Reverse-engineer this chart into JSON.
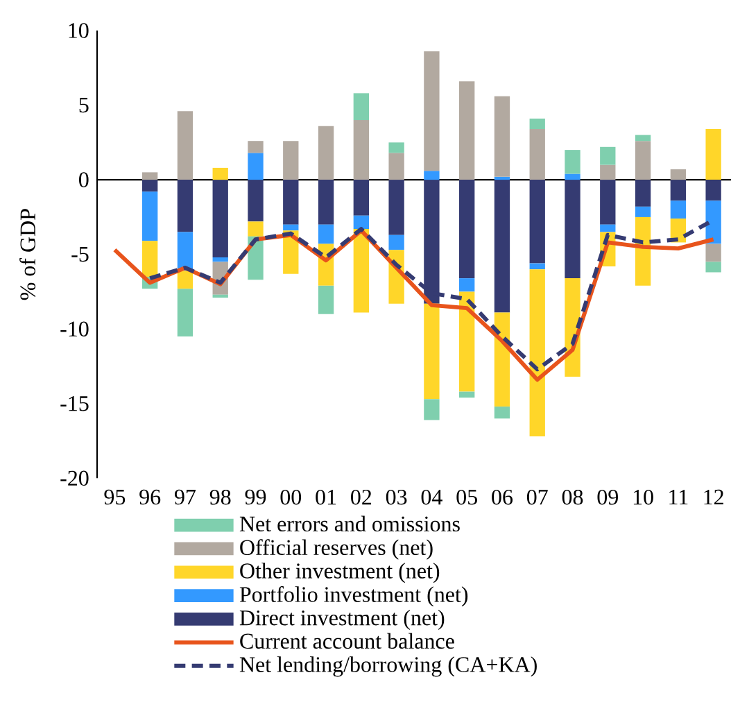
{
  "chart_data": {
    "type": "bar",
    "stacked": true,
    "ylabel": "% of GDP",
    "legend": "bottom",
    "categories": [
      "95",
      "96",
      "97",
      "98",
      "99",
      "00",
      "01",
      "02",
      "03",
      "04",
      "05",
      "06",
      "07",
      "08",
      "09",
      "10",
      "11",
      "12"
    ],
    "ylim": [
      -20,
      10
    ],
    "yticks": [
      -20,
      -15,
      -10,
      -5,
      0,
      5,
      10
    ],
    "series": [
      {
        "name": "Direct investment (net)",
        "color": "#353b72",
        "values": [
          null,
          -0.8,
          -3.5,
          -5.2,
          -2.8,
          -3.0,
          -3.0,
          -2.4,
          -3.7,
          -8.3,
          -6.6,
          -8.9,
          -5.6,
          -6.6,
          -3.0,
          -1.8,
          -1.4,
          -1.4
        ]
      },
      {
        "name": "Portfolio investment (net)",
        "color": "#3399ff",
        "values": [
          null,
          -3.3,
          -2.6,
          -0.3,
          1.8,
          -0.4,
          -1.3,
          -0.9,
          -1.0,
          0.6,
          -0.9,
          0.2,
          -0.4,
          0.4,
          -0.5,
          -0.7,
          -1.2,
          -2.9
        ]
      },
      {
        "name": "Other investment (net)",
        "color": "#ffd629",
        "values": [
          null,
          -2.4,
          -1.2,
          0.8,
          -1.0,
          -2.9,
          -2.8,
          -5.6,
          -3.6,
          -6.4,
          -6.7,
          -6.3,
          -11.2,
          -6.6,
          -2.3,
          -4.6,
          -1.6,
          3.4
        ]
      },
      {
        "name": "Official reserves (net)",
        "color": "#b2a9a0",
        "values": [
          null,
          0.5,
          4.6,
          -2.2,
          0.8,
          2.6,
          3.6,
          4.0,
          1.8,
          8.0,
          6.6,
          5.4,
          3.4,
          null,
          1.0,
          2.6,
          0.7,
          -1.2
        ]
      },
      {
        "name": "Net errors and omissions",
        "color": "#7fcfae",
        "values": [
          null,
          -0.8,
          -3.2,
          -0.2,
          -2.9,
          null,
          -1.9,
          1.8,
          0.7,
          -1.4,
          -0.4,
          -0.8,
          0.7,
          1.6,
          1.2,
          0.4,
          null,
          -0.7
        ]
      },
      {
        "name": "Current account balance",
        "type": "line",
        "line_style": "solid",
        "color": "#e8541c",
        "values": [
          -4.7,
          -6.9,
          -5.9,
          -7.0,
          -4.0,
          -3.7,
          -5.4,
          -3.4,
          -5.9,
          -8.4,
          -8.6,
          -10.8,
          -13.4,
          -11.4,
          -4.2,
          -4.5,
          -4.6,
          -4.0
        ]
      },
      {
        "name": "Net lending/borrowing (CA+KA)",
        "type": "line",
        "line_style": "dashed",
        "color": "#353b72",
        "values": [
          null,
          -6.6,
          -5.9,
          -6.9,
          -4.0,
          -3.6,
          -5.2,
          -3.3,
          -5.7,
          -7.6,
          -8.0,
          -10.5,
          -12.7,
          -11.0,
          -3.7,
          -4.2,
          -4.0,
          -2.7
        ]
      }
    ]
  }
}
